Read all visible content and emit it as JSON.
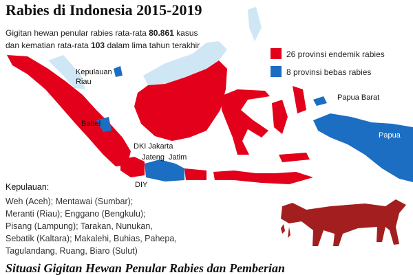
{
  "title": "Rabies di Indonesia 2015-2019",
  "subtitle": [
    [
      "Gigitan hewan penular rabies rata-rata ",
      "80.861",
      " kasus"
    ],
    [
      "dan kematian rata-rata ",
      "103",
      " dalam lima tahun terakhir"
    ]
  ],
  "legend": [
    {
      "label": "26 provinsi endemik rabies",
      "color": "#e3001b"
    },
    {
      "label": "8 provinsi bebas rabies",
      "color": "#1b6ec2"
    }
  ],
  "map_labels": {
    "kepri": [
      "Kepulauan",
      "Riau"
    ],
    "babel": "Babel",
    "dki": "DKI Jakarta",
    "jateng": "Jateng",
    "jatim": "Jatim",
    "diy": "DIY",
    "papua_barat": "Papua Barat",
    "papua": "Papua"
  },
  "islands_note": {
    "heading": "Kepulauan:",
    "lines": [
      "Weh (Aceh); Mentawai (Sumbar);",
      "Meranti (Riau); Enggano (Bengkulu);",
      "Pisang (Lampung); Tarakan, Nunukan,",
      "Sebatik (Kaltara); Makalehi, Buhias, Pahepa,",
      "Tagulandang, Ruang, Biaro (Sulut)"
    ]
  },
  "footer_title": "Situasi Gigitan Hewan Penular Rabies dan Pemberian"
}
